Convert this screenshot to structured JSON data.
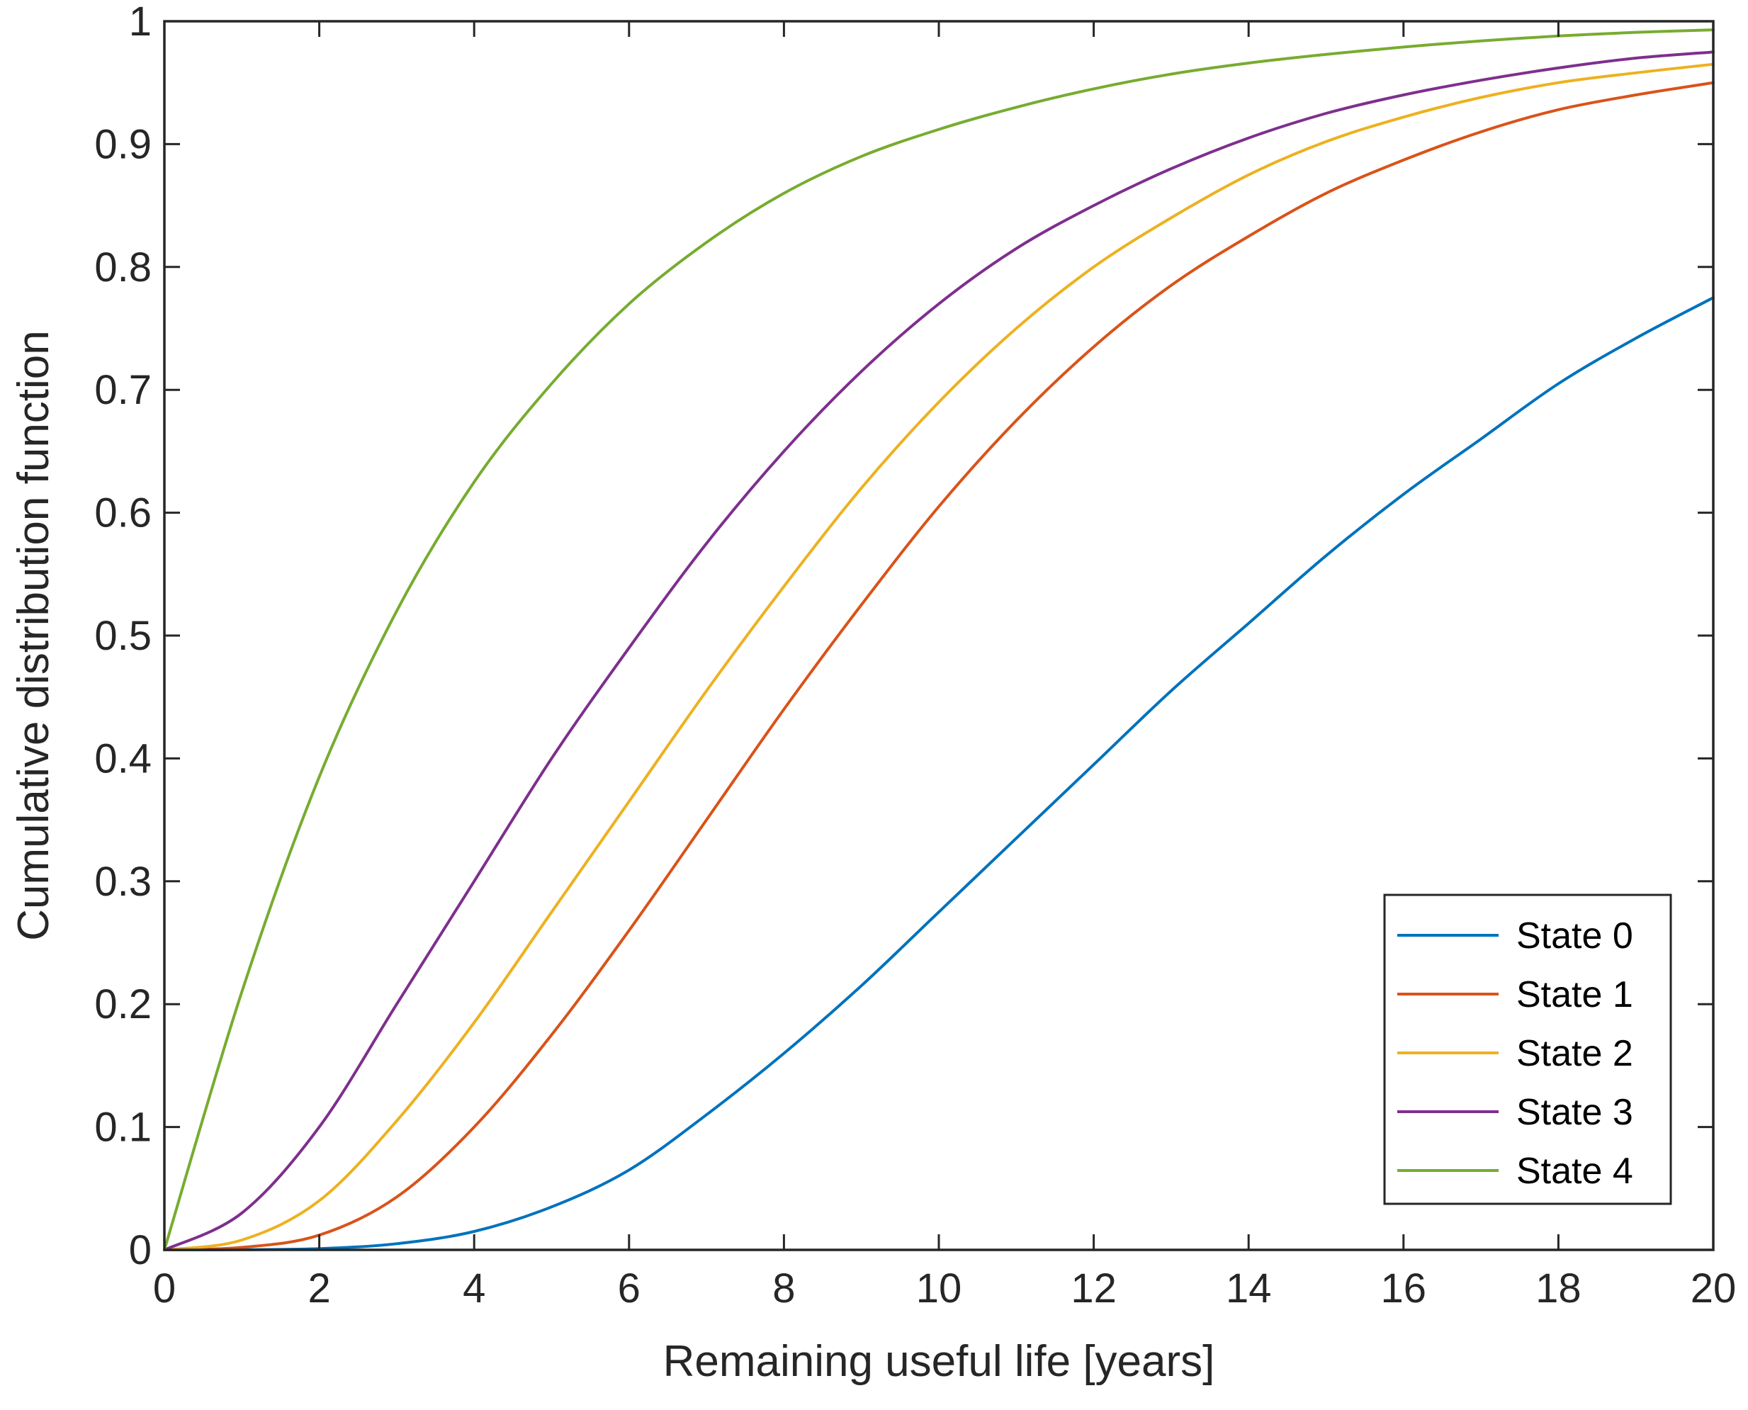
{
  "chart_data": {
    "type": "line",
    "title": "",
    "xlabel": "Remaining useful life [years]",
    "ylabel": "Cumulative distribution function",
    "xlim": [
      0,
      20
    ],
    "ylim": [
      0,
      1
    ],
    "x_ticks": [
      0,
      2,
      4,
      6,
      8,
      10,
      12,
      14,
      16,
      18,
      20
    ],
    "x_tick_labels": [
      "0",
      "2",
      "4",
      "6",
      "8",
      "10",
      "12",
      "14",
      "16",
      "18",
      "20"
    ],
    "y_ticks": [
      0,
      0.1,
      0.2,
      0.3,
      0.4,
      0.5,
      0.6,
      0.7,
      0.8,
      0.9,
      1
    ],
    "y_tick_labels": [
      "0",
      "0.1",
      "0.2",
      "0.3",
      "0.4",
      "0.5",
      "0.6",
      "0.7",
      "0.8",
      "0.9",
      "1"
    ],
    "grid": false,
    "legend_position": "bottom-right",
    "x": [
      0,
      1,
      2,
      3,
      4,
      5,
      6,
      7,
      8,
      9,
      10,
      11,
      12,
      13,
      14,
      15,
      16,
      17,
      18,
      19,
      20
    ],
    "series": [
      {
        "name": "State 0",
        "color": "#0072bd",
        "values": [
          0,
          0.0001,
          0.001,
          0.005,
          0.015,
          0.035,
          0.065,
          0.11,
          0.16,
          0.215,
          0.275,
          0.335,
          0.395,
          0.455,
          0.51,
          0.565,
          0.615,
          0.66,
          0.705,
          0.742,
          0.775
        ]
      },
      {
        "name": "State 1",
        "color": "#d95319",
        "values": [
          0,
          0.002,
          0.012,
          0.043,
          0.1,
          0.175,
          0.26,
          0.35,
          0.44,
          0.525,
          0.605,
          0.675,
          0.735,
          0.785,
          0.825,
          0.86,
          0.887,
          0.91,
          0.928,
          0.94,
          0.95
        ]
      },
      {
        "name": "State 2",
        "color": "#edb120",
        "values": [
          0,
          0.008,
          0.04,
          0.105,
          0.185,
          0.275,
          0.365,
          0.455,
          0.54,
          0.62,
          0.69,
          0.75,
          0.8,
          0.84,
          0.875,
          0.902,
          0.922,
          0.938,
          0.95,
          0.958,
          0.965
        ]
      },
      {
        "name": "State 3",
        "color": "#7e2f8e",
        "values": [
          0,
          0.03,
          0.1,
          0.2,
          0.3,
          0.4,
          0.49,
          0.575,
          0.65,
          0.715,
          0.77,
          0.815,
          0.85,
          0.88,
          0.905,
          0.925,
          0.94,
          0.952,
          0.962,
          0.97,
          0.975
        ]
      },
      {
        "name": "State 4",
        "color": "#77ac30",
        "values": [
          0,
          0.21,
          0.385,
          0.52,
          0.625,
          0.705,
          0.77,
          0.82,
          0.86,
          0.89,
          0.912,
          0.93,
          0.945,
          0.957,
          0.966,
          0.973,
          0.979,
          0.984,
          0.988,
          0.991,
          0.993
        ]
      }
    ]
  }
}
